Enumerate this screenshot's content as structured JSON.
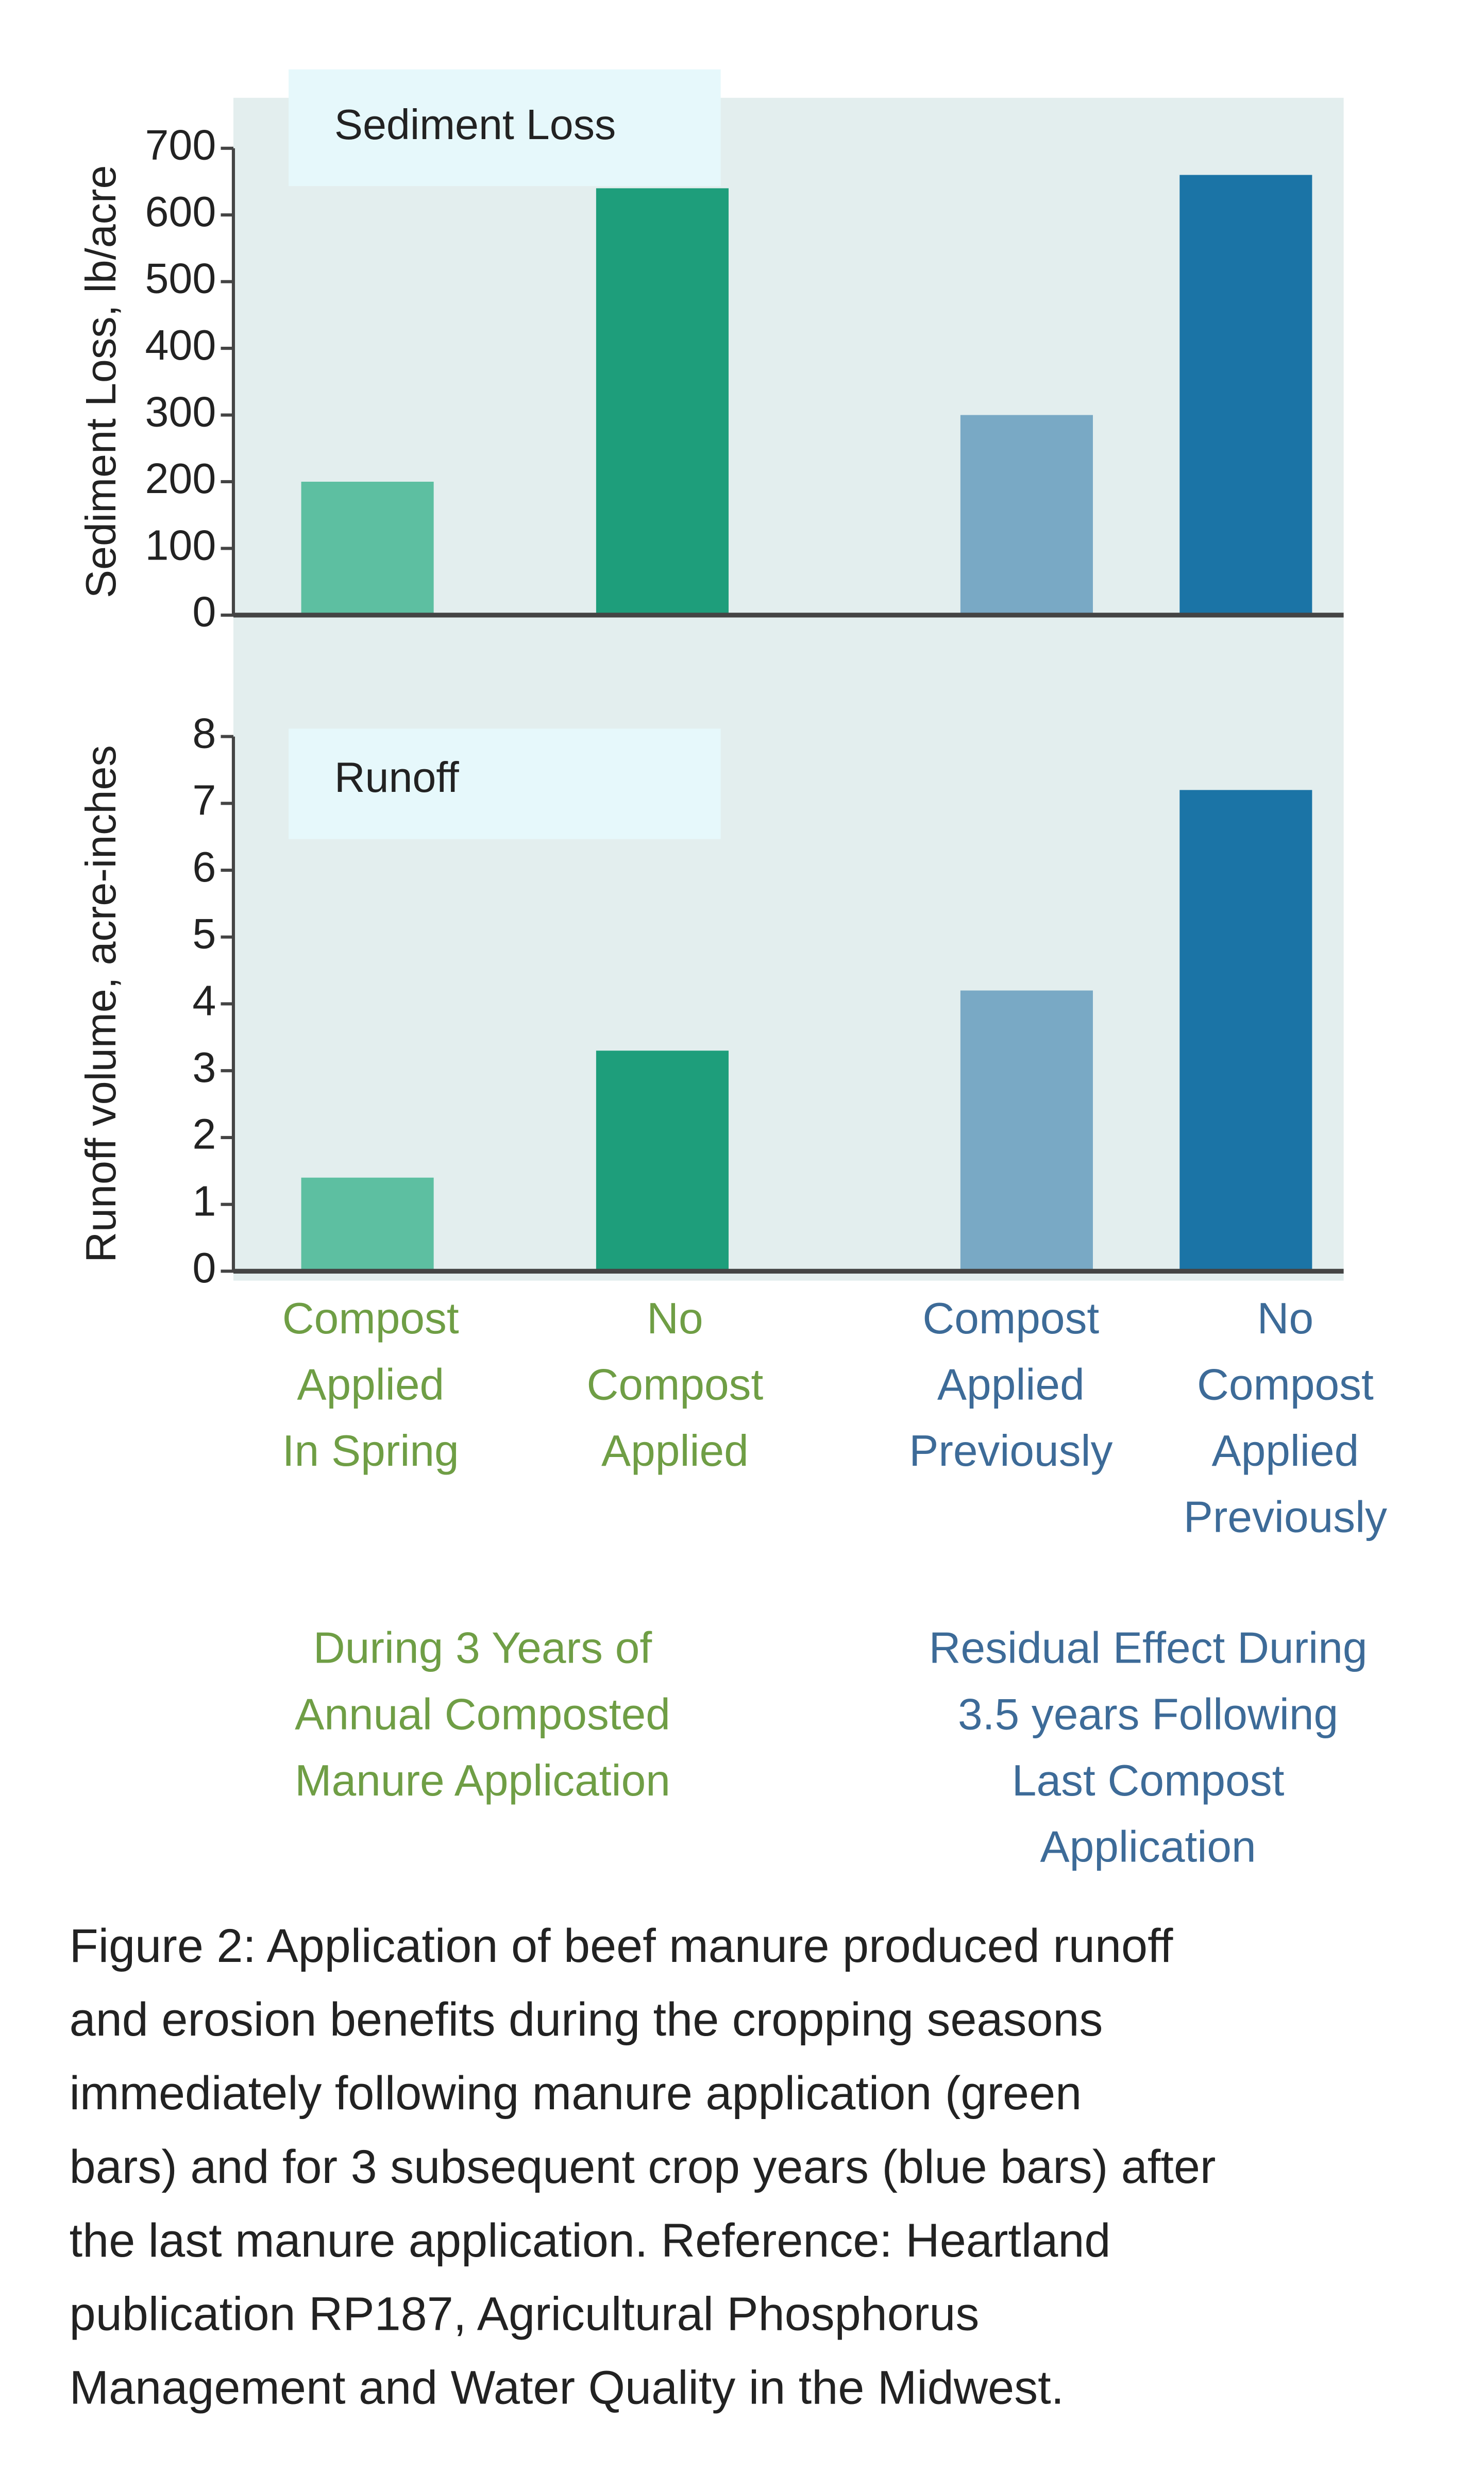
{
  "chart_data": [
    {
      "type": "bar",
      "title": "Sediment Loss",
      "y_label": "Sediment Loss, lb/acre",
      "categories": [
        null,
        null,
        null,
        null
      ],
      "values": [
        200,
        640,
        300,
        660
      ],
      "colors": [
        "#5dbfa1",
        "#1e9e7b",
        "#79a9c5",
        "#1b74a6"
      ],
      "ylim": [
        0,
        700
      ],
      "yticks": [
        0,
        100,
        200,
        300,
        400,
        500,
        600,
        700
      ]
    },
    {
      "type": "bar",
      "title": "Runoff",
      "y_label": "Runoff volume, acre-inches",
      "categories": [
        [
          "Compost",
          "Applied",
          "In Spring"
        ],
        [
          "No",
          "Compost",
          "Applied"
        ],
        [
          "Compost",
          "Applied",
          "Previously"
        ],
        [
          "No",
          "Compost",
          "Applied",
          "Previously"
        ]
      ],
      "category_colors": [
        "#6f9e45",
        "#6f9e45",
        "#3d6b98",
        "#3d6b98"
      ],
      "values": [
        1.4,
        3.3,
        4.2,
        7.2
      ],
      "colors": [
        "#5dbfa1",
        "#1e9e7b",
        "#79a9c5",
        "#1b74a6"
      ],
      "ylim": [
        0,
        8
      ],
      "yticks": [
        0,
        1,
        2,
        3,
        4,
        5,
        6,
        7,
        8
      ]
    }
  ],
  "group_labels": [
    {
      "lines": [
        "During 3 Years of",
        "Annual Composted",
        "Manure Application"
      ],
      "color": "#6f9e45"
    },
    {
      "lines": [
        "Residual Effect During",
        "3.5 years Following",
        "Last Compost",
        "Application"
      ],
      "color": "#3d6b98"
    }
  ],
  "caption": [
    "Figure 2:  Application of beef manure produced runoff",
    "and erosion benefits during the cropping seasons",
    "immediately following manure application (green",
    "bars) and for 3 subsequent crop years (blue bars) after",
    "the last manure application. Reference:  Heartland",
    "publication RP187, Agricultural Phosphorus",
    "Management and Water Quality in the Midwest."
  ]
}
